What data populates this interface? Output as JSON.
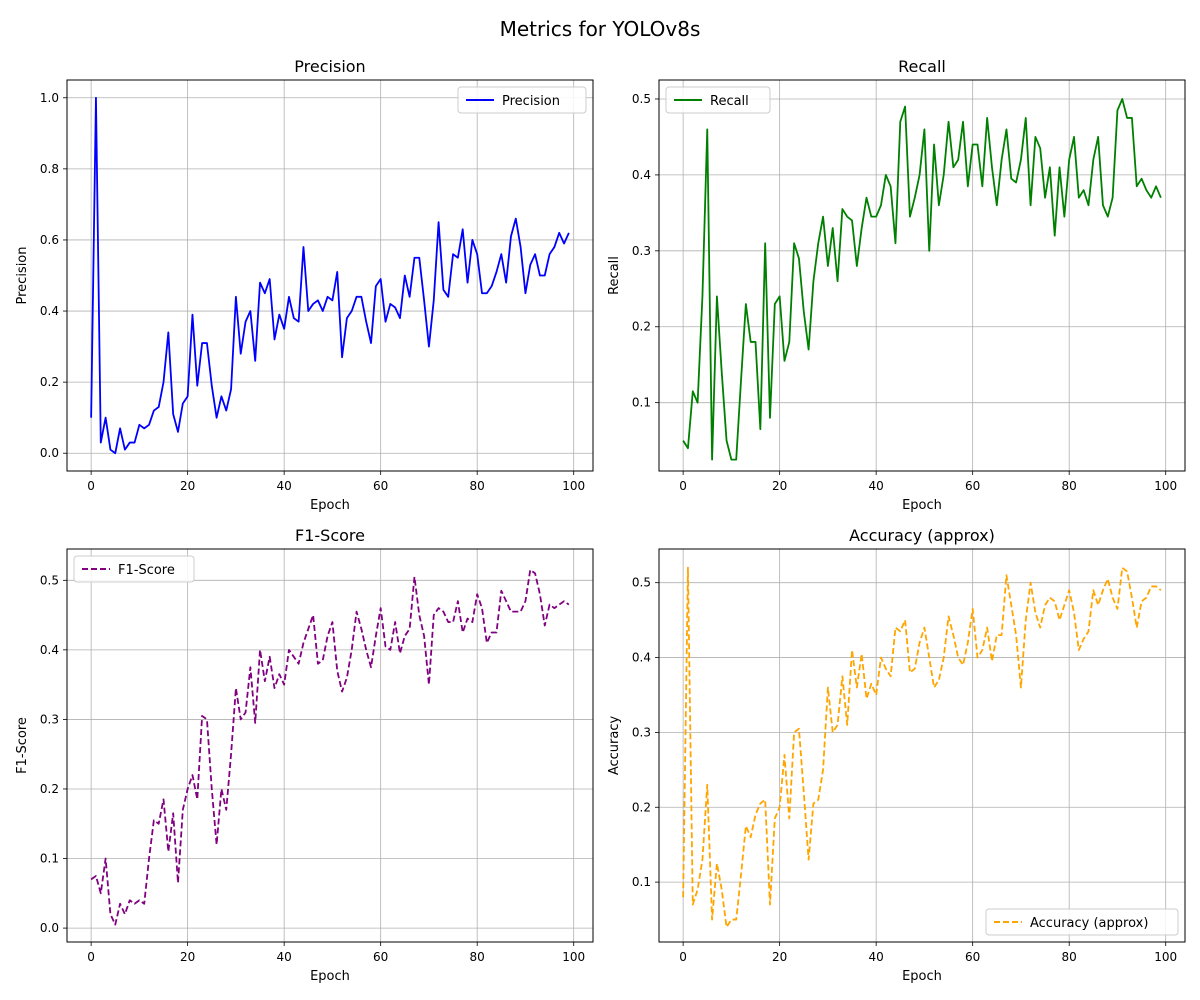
{
  "figure_title": "Metrics for YOLOv8s",
  "chart_data": [
    {
      "type": "line",
      "title": "Precision",
      "xlabel": "Epoch",
      "ylabel": "Precision",
      "xlim": [
        -5,
        104
      ],
      "ylim": [
        -0.05,
        1.05
      ],
      "xticks": [
        0,
        20,
        40,
        60,
        80,
        100
      ],
      "yticks": [
        0.0,
        0.2,
        0.4,
        0.6,
        0.8,
        1.0
      ],
      "ytick_decimals": 1,
      "grid": true,
      "legend_position": "top-right",
      "series": [
        {
          "name": "Precision",
          "color": "#0000ff",
          "style": "solid",
          "x_start": 0,
          "values": [
            0.1,
            1.0,
            0.03,
            0.1,
            0.01,
            0.0,
            0.07,
            0.01,
            0.03,
            0.03,
            0.08,
            0.07,
            0.08,
            0.12,
            0.13,
            0.2,
            0.34,
            0.11,
            0.06,
            0.14,
            0.16,
            0.39,
            0.19,
            0.31,
            0.31,
            0.19,
            0.1,
            0.16,
            0.12,
            0.18,
            0.44,
            0.28,
            0.37,
            0.4,
            0.26,
            0.48,
            0.45,
            0.49,
            0.32,
            0.39,
            0.35,
            0.44,
            0.38,
            0.37,
            0.58,
            0.4,
            0.42,
            0.43,
            0.4,
            0.44,
            0.43,
            0.51,
            0.27,
            0.38,
            0.4,
            0.44,
            0.44,
            0.37,
            0.31,
            0.47,
            0.49,
            0.37,
            0.42,
            0.41,
            0.38,
            0.5,
            0.44,
            0.55,
            0.55,
            0.43,
            0.3,
            0.43,
            0.65,
            0.46,
            0.44,
            0.56,
            0.55,
            0.63,
            0.48,
            0.6,
            0.56,
            0.45,
            0.45,
            0.47,
            0.51,
            0.56,
            0.48,
            0.61,
            0.66,
            0.58,
            0.45,
            0.53,
            0.56,
            0.5,
            0.5,
            0.56,
            0.58,
            0.62,
            0.59,
            0.62
          ]
        }
      ]
    },
    {
      "type": "line",
      "title": "Recall",
      "xlabel": "Epoch",
      "ylabel": "Recall",
      "xlim": [
        -5,
        104
      ],
      "ylim": [
        0.01,
        0.525
      ],
      "xticks": [
        0,
        20,
        40,
        60,
        80,
        100
      ],
      "yticks": [
        0.1,
        0.2,
        0.3,
        0.4,
        0.5
      ],
      "ytick_decimals": 1,
      "grid": true,
      "legend_position": "top-left",
      "series": [
        {
          "name": "Recall",
          "color": "#008000",
          "style": "solid",
          "x_start": 0,
          "values": [
            0.05,
            0.04,
            0.115,
            0.1,
            0.24,
            0.46,
            0.025,
            0.24,
            0.14,
            0.05,
            0.025,
            0.025,
            0.13,
            0.23,
            0.18,
            0.18,
            0.065,
            0.31,
            0.08,
            0.23,
            0.24,
            0.155,
            0.18,
            0.31,
            0.29,
            0.22,
            0.17,
            0.26,
            0.31,
            0.345,
            0.28,
            0.33,
            0.26,
            0.355,
            0.345,
            0.34,
            0.28,
            0.33,
            0.37,
            0.345,
            0.345,
            0.36,
            0.4,
            0.385,
            0.31,
            0.47,
            0.49,
            0.345,
            0.37,
            0.4,
            0.46,
            0.3,
            0.44,
            0.36,
            0.4,
            0.47,
            0.41,
            0.42,
            0.47,
            0.385,
            0.44,
            0.44,
            0.385,
            0.475,
            0.41,
            0.36,
            0.42,
            0.46,
            0.395,
            0.39,
            0.42,
            0.475,
            0.36,
            0.45,
            0.435,
            0.37,
            0.41,
            0.32,
            0.41,
            0.345,
            0.42,
            0.45,
            0.37,
            0.38,
            0.36,
            0.42,
            0.45,
            0.36,
            0.345,
            0.37,
            0.485,
            0.5,
            0.475,
            0.475,
            0.385,
            0.395,
            0.38,
            0.37,
            0.385,
            0.37
          ]
        }
      ]
    },
    {
      "type": "line",
      "title": "F1-Score",
      "xlabel": "Epoch",
      "ylabel": "F1-Score",
      "xlim": [
        -5,
        104
      ],
      "ylim": [
        -0.02,
        0.545
      ],
      "xticks": [
        0,
        20,
        40,
        60,
        80,
        100
      ],
      "yticks": [
        0.0,
        0.1,
        0.2,
        0.3,
        0.4,
        0.5
      ],
      "ytick_decimals": 1,
      "grid": true,
      "legend_position": "top-left",
      "series": [
        {
          "name": "F1-Score",
          "color": "#800080",
          "style": "dashed",
          "x_start": 0,
          "values": [
            0.07,
            0.075,
            0.05,
            0.1,
            0.02,
            0.005,
            0.035,
            0.02,
            0.04,
            0.035,
            0.04,
            0.035,
            0.1,
            0.155,
            0.15,
            0.185,
            0.11,
            0.165,
            0.065,
            0.17,
            0.2,
            0.22,
            0.185,
            0.305,
            0.3,
            0.2,
            0.12,
            0.2,
            0.17,
            0.25,
            0.345,
            0.3,
            0.31,
            0.375,
            0.295,
            0.4,
            0.355,
            0.39,
            0.345,
            0.365,
            0.35,
            0.4,
            0.39,
            0.38,
            0.41,
            0.43,
            0.45,
            0.38,
            0.385,
            0.42,
            0.44,
            0.37,
            0.34,
            0.36,
            0.4,
            0.455,
            0.43,
            0.4,
            0.375,
            0.42,
            0.46,
            0.405,
            0.4,
            0.44,
            0.395,
            0.42,
            0.43,
            0.505,
            0.45,
            0.42,
            0.35,
            0.45,
            0.46,
            0.455,
            0.44,
            0.44,
            0.47,
            0.425,
            0.445,
            0.44,
            0.48,
            0.46,
            0.41,
            0.425,
            0.425,
            0.485,
            0.47,
            0.455,
            0.455,
            0.455,
            0.47,
            0.515,
            0.51,
            0.48,
            0.435,
            0.465,
            0.46,
            0.465,
            0.47,
            0.465
          ]
        }
      ]
    },
    {
      "type": "line",
      "title": "Accuracy (approx)",
      "xlabel": "Epoch",
      "ylabel": "Accuracy",
      "xlim": [
        -5,
        104
      ],
      "ylim": [
        0.02,
        0.545
      ],
      "xticks": [
        0,
        20,
        40,
        60,
        80,
        100
      ],
      "yticks": [
        0.1,
        0.2,
        0.3,
        0.4,
        0.5
      ],
      "ytick_decimals": 1,
      "grid": true,
      "legend_position": "bottom-right",
      "series": [
        {
          "name": "Accuracy (approx)",
          "color": "#ffa500",
          "style": "dashed",
          "x_start": 0,
          "values": [
            0.08,
            0.52,
            0.07,
            0.09,
            0.13,
            0.23,
            0.05,
            0.125,
            0.09,
            0.04,
            0.05,
            0.05,
            0.11,
            0.175,
            0.16,
            0.19,
            0.205,
            0.21,
            0.07,
            0.185,
            0.2,
            0.27,
            0.185,
            0.3,
            0.305,
            0.22,
            0.13,
            0.205,
            0.21,
            0.25,
            0.36,
            0.3,
            0.31,
            0.375,
            0.31,
            0.41,
            0.36,
            0.405,
            0.345,
            0.365,
            0.35,
            0.4,
            0.385,
            0.375,
            0.44,
            0.435,
            0.45,
            0.38,
            0.385,
            0.42,
            0.44,
            0.4,
            0.36,
            0.37,
            0.4,
            0.455,
            0.43,
            0.4,
            0.39,
            0.42,
            0.465,
            0.4,
            0.41,
            0.44,
            0.395,
            0.43,
            0.43,
            0.51,
            0.47,
            0.43,
            0.36,
            0.45,
            0.5,
            0.46,
            0.44,
            0.47,
            0.48,
            0.475,
            0.45,
            0.47,
            0.49,
            0.46,
            0.41,
            0.425,
            0.435,
            0.49,
            0.47,
            0.49,
            0.505,
            0.48,
            0.465,
            0.52,
            0.515,
            0.48,
            0.44,
            0.475,
            0.48,
            0.495,
            0.495,
            0.49
          ]
        }
      ]
    }
  ]
}
